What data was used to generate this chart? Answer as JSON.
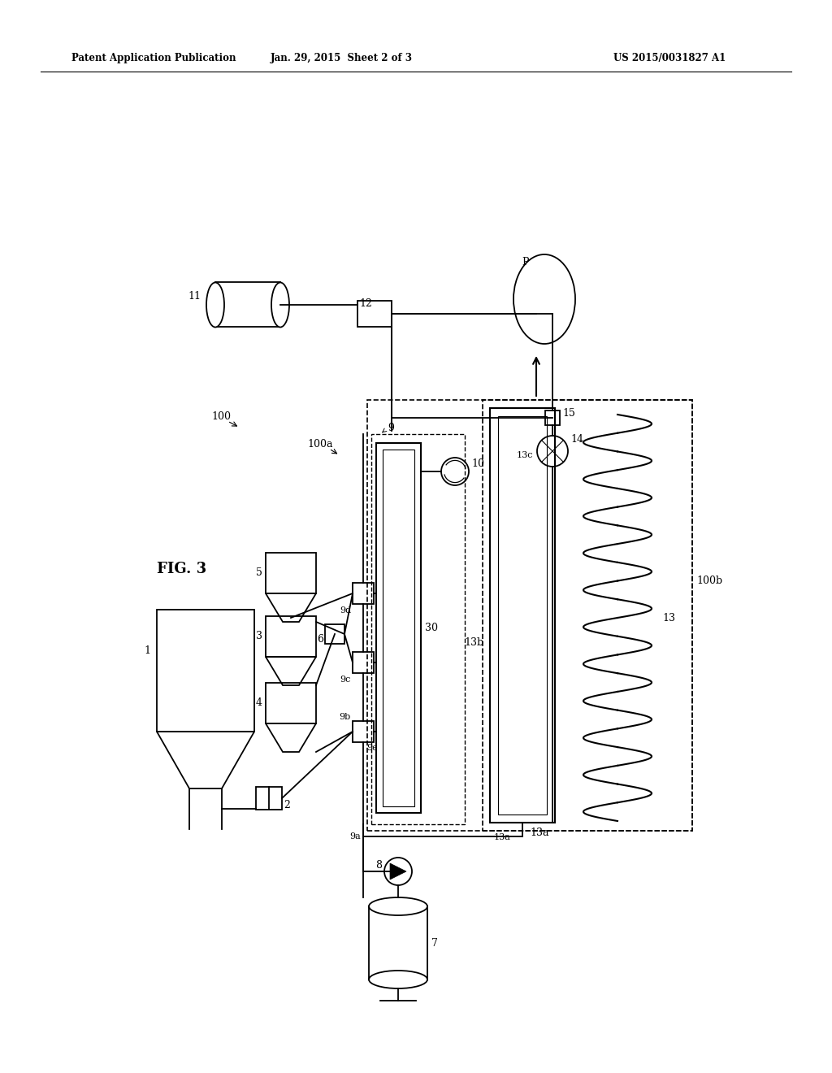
{
  "title_left": "Patent Application Publication",
  "title_mid": "Jan. 29, 2015  Sheet 2 of 3",
  "title_right": "US 2015/0031827 A1",
  "background": "#ffffff",
  "line_color": "#000000"
}
